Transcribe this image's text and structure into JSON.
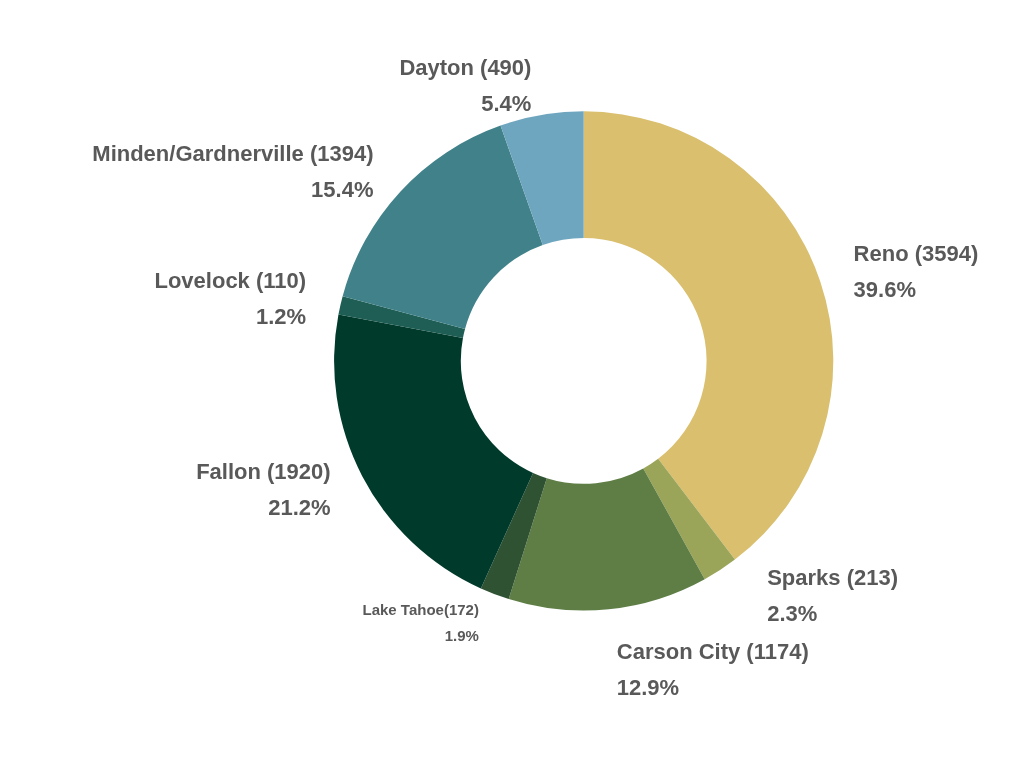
{
  "chart_data": {
    "type": "donut",
    "categories": [
      "Reno (3594)",
      "Sparks (213)",
      "Carson City (1174)",
      "Lake Tahoe(172)",
      "Fallon (1920)",
      "Lovelock (110)",
      "Minden/Gardnerville (1394)",
      "Dayton (490)"
    ],
    "values": [
      39.6,
      2.3,
      12.9,
      1.9,
      21.2,
      1.2,
      15.4,
      5.4
    ],
    "value_labels": [
      "39.6%",
      "2.3%",
      "12.9%",
      "1.9%",
      "21.2%",
      "1.2%",
      "15.4%",
      "5.4%"
    ],
    "colors": [
      "#d9bf6e",
      "#9aa55a",
      "#5e7e45",
      "#2e5232",
      "#003a2b",
      "#1f5e55",
      "#41828a",
      "#6fa6bf"
    ],
    "legend": false
  }
}
